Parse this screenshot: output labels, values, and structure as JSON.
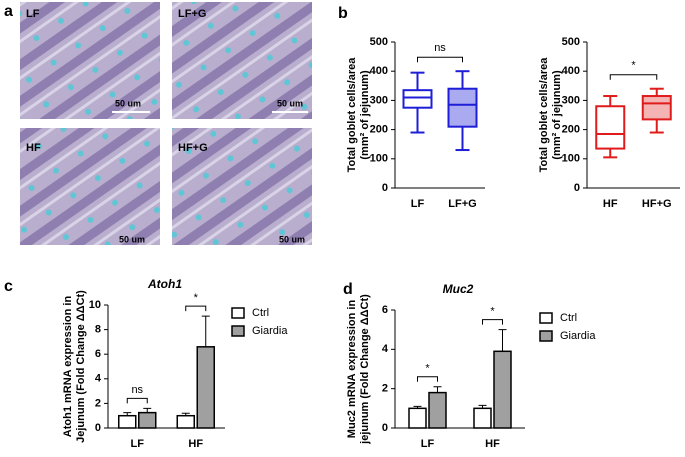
{
  "panel_labels": [
    "a",
    "b",
    "c",
    "d"
  ],
  "micrographs": [
    {
      "label": "LF",
      "scale": "50 um"
    },
    {
      "label": "LF+G",
      "scale": "50 um"
    },
    {
      "label": "HF",
      "scale": "50 um"
    },
    {
      "label": "HF+G",
      "scale": "50 um"
    }
  ],
  "chart_data": [
    {
      "type": "box",
      "ylabel": [
        "Total goblet cells/area",
        "(mm² of jejunum)"
      ],
      "categories": [
        "LF",
        "LF+G"
      ],
      "color": "#1e1ed8",
      "box_fills": [
        "#ffffff",
        "#aaaaf0"
      ],
      "boxes": [
        {
          "min": 190,
          "q1": 275,
          "median": 310,
          "q3": 335,
          "max": 395
        },
        {
          "min": 130,
          "q1": 210,
          "median": 285,
          "q3": 340,
          "max": 400
        }
      ],
      "annotation": "ns",
      "ylim": [
        0,
        500
      ],
      "yticks": [
        0,
        100,
        200,
        300,
        400,
        500
      ]
    },
    {
      "type": "box",
      "ylabel": [
        "Total goblet cells/area",
        "(mm² of jejunum)"
      ],
      "categories": [
        "HF",
        "HF+G"
      ],
      "color": "#e01b1b",
      "box_fills": [
        "#ffffff",
        "#f4b4b4"
      ],
      "boxes": [
        {
          "min": 105,
          "q1": 135,
          "median": 185,
          "q3": 280,
          "max": 315
        },
        {
          "min": 190,
          "q1": 235,
          "median": 290,
          "q3": 315,
          "max": 340
        }
      ],
      "annotation": "*",
      "ylim": [
        0,
        500
      ],
      "yticks": [
        0,
        100,
        200,
        300,
        400,
        500
      ]
    },
    {
      "type": "bar",
      "title": "Atoh1",
      "ylabel": [
        "Atoh1  mRNA expression in",
        "Jejunum (Fold Change ΔΔCt)"
      ],
      "categories": [
        "LF",
        "HF"
      ],
      "series": [
        {
          "name": "Ctrl",
          "color": "#ffffff",
          "values": [
            1.0,
            1.0
          ],
          "errors": [
            0.25,
            0.2
          ]
        },
        {
          "name": "Giardia",
          "color": "#a0a0a0",
          "values": [
            1.25,
            6.6
          ],
          "errors": [
            0.35,
            2.5
          ]
        }
      ],
      "annotations": [
        "ns",
        "*"
      ],
      "ylim": [
        0,
        10
      ],
      "yticks": [
        0,
        2,
        4,
        6,
        8,
        10
      ]
    },
    {
      "type": "bar",
      "title": "Muc2",
      "ylabel": [
        "Muc2 mRNA expression in",
        "jejunum (Fold Change ΔΔCt)"
      ],
      "categories": [
        "LF",
        "HF"
      ],
      "series": [
        {
          "name": "Ctrl",
          "color": "#ffffff",
          "values": [
            1.0,
            1.0
          ],
          "errors": [
            0.1,
            0.15
          ]
        },
        {
          "name": "Giardia",
          "color": "#a0a0a0",
          "values": [
            1.8,
            3.9
          ],
          "errors": [
            0.3,
            1.1
          ]
        }
      ],
      "annotations": [
        "*",
        "*"
      ],
      "ylim": [
        0,
        6
      ],
      "yticks": [
        0,
        2,
        4,
        6
      ]
    }
  ]
}
